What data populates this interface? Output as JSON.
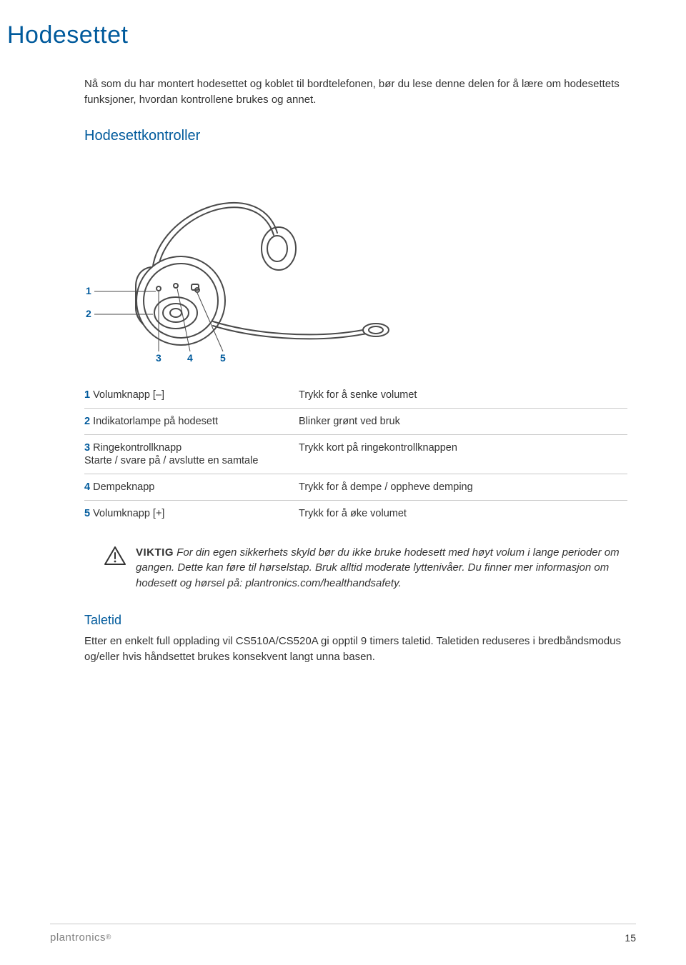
{
  "colors": {
    "accent": "#005a9c",
    "text": "#333333",
    "rule": "#c9c9c9",
    "brand": "#808080",
    "stroke": "#4a4a4a",
    "bg": "#ffffff"
  },
  "page": {
    "title": "Hodesettet",
    "intro": "Nå som du har montert hodesettet og koblet til bordtelefonen, bør du lese denne delen for å lære om hodesettets funksjoner, hvordan kontrollene brukes og annet.",
    "section_title": "Hodesettkontroller"
  },
  "diagram": {
    "labels": [
      "1",
      "2",
      "3",
      "4",
      "5"
    ]
  },
  "table": {
    "rows": [
      {
        "num": "1",
        "label": "Volumknapp [–]",
        "sub": null,
        "desc": "Trykk for å senke volumet"
      },
      {
        "num": "2",
        "label": "Indikatorlampe på hodesett",
        "sub": null,
        "desc": "Blinker grønt ved bruk"
      },
      {
        "num": "3",
        "label": "Ringekontrollknapp",
        "sub": "Starte / svare på / avslutte en samtale",
        "desc": "Trykk kort på ringekontrollknappen"
      },
      {
        "num": "4",
        "label": "Dempeknapp",
        "sub": null,
        "desc": "Trykk for å dempe / oppheve demping"
      },
      {
        "num": "5",
        "label": "Volumknapp [+]",
        "sub": null,
        "desc": "Trykk for å øke volumet"
      }
    ]
  },
  "notice": {
    "lead": "VIKTIG",
    "text_1": " For din egen sikkerhets skyld bør du ikke bruke hodesett med høyt volum i lange perioder om gangen. Dette kan føre til hørselstap. Bruk alltid moderate lyttenivåer. Du finner mer informasjon om hodesett og hørsel på: ",
    "link": "plantronics.com/healthandsafety",
    "text_2": "."
  },
  "taletid": {
    "title": "Taletid",
    "body": "Etter en enkelt full opplading vil CS510A/CS520A gi opptil 9 timers taletid. Taletiden reduseres i bredbåndsmodus og/eller hvis håndsettet brukes konsekvent langt unna basen."
  },
  "footer": {
    "brand": "plantronics",
    "page_number": "15"
  }
}
